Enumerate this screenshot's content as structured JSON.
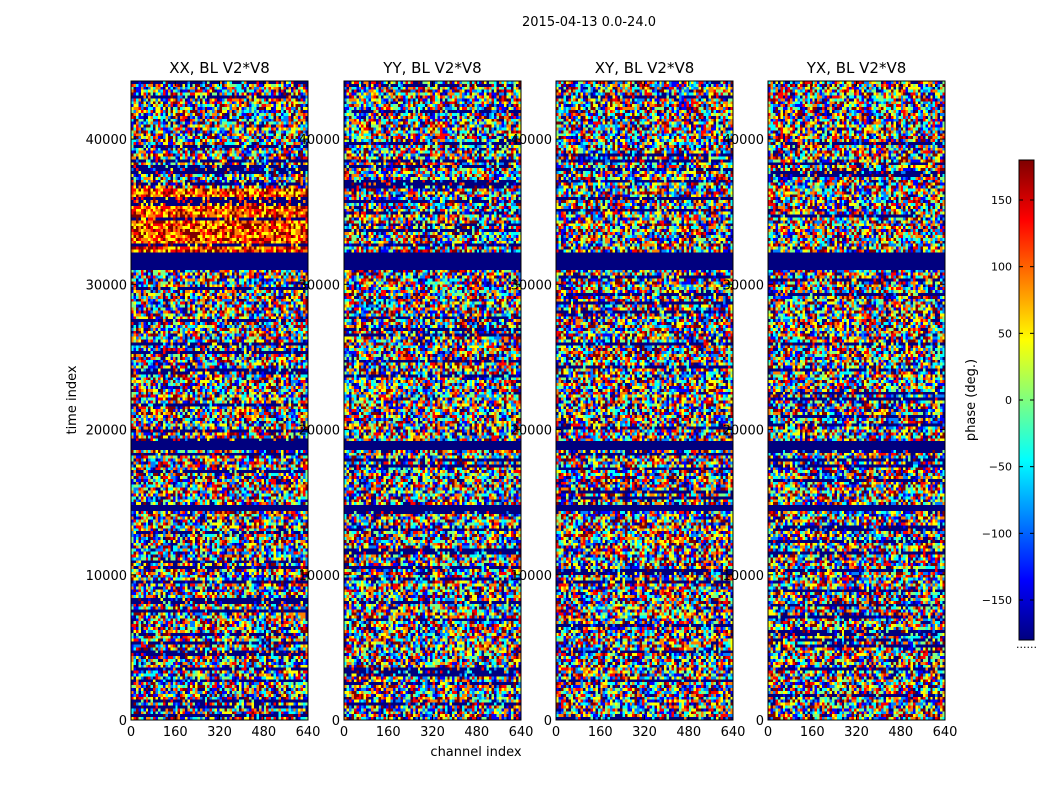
{
  "figure": {
    "suptitle": "2015-04-13 0.0-24.0",
    "xlabel": "channel index",
    "ylabel": "time index",
    "colorbar_label": "phase (deg.)",
    "colorbar_footnote": "......"
  },
  "chart_data": {
    "type": "heatmap",
    "x_range": [
      0,
      640
    ],
    "y_range": [
      0,
      44000
    ],
    "x_ticks": [
      0,
      160,
      320,
      480,
      640
    ],
    "y_ticks": [
      0,
      10000,
      20000,
      30000,
      40000
    ],
    "colormap": "jet",
    "color_range": [
      -180,
      180
    ],
    "colorbar_ticks": [
      150,
      100,
      50,
      0,
      -50,
      -100,
      -150
    ],
    "colorbar_tick_labels": [
      "150",
      "100",
      "50",
      "0",
      "−50",
      "−100",
      "−150"
    ],
    "flagged_value": -180,
    "flagged_time_ranges": [
      [
        31000,
        32200
      ],
      [
        18700,
        19200
      ],
      [
        14500,
        14800
      ]
    ],
    "phase_shift_time_ranges": [
      [
        32000,
        36500
      ]
    ],
    "panels": [
      {
        "title": "XX, BL V2*V8",
        "polarization": "XX"
      },
      {
        "title": "YY, BL V2*V8",
        "polarization": "YY"
      },
      {
        "title": "XY, BL V2*V8",
        "polarization": "XY"
      },
      {
        "title": "YX, BL V2*V8",
        "polarization": "YX"
      }
    ]
  },
  "colors": {
    "jet": [
      "#00007f",
      "#0000ff",
      "#007fff",
      "#00ffff",
      "#7fff7f",
      "#ffff00",
      "#ff7f00",
      "#ff0000",
      "#7f0000"
    ]
  }
}
